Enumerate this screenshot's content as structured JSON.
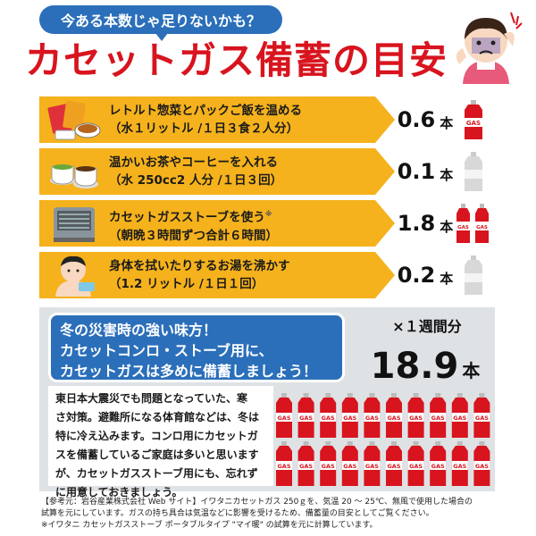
{
  "header": {
    "subtitle": "今ある本数じゃ足りないかも？",
    "title": "カセットガス備蓄の目安"
  },
  "rows": [
    {
      "line1": "レトルト惣菜とパックご飯を温める",
      "line2": "（水１リットル /１日３食２人分）",
      "value": "0.6",
      "unit": "本",
      "icon": "retort-food-icon"
    },
    {
      "line1": "温かいお茶やコーヒーを入れる",
      "line2": "（水 250cc2 人分 /１日３回）",
      "value": "0.1",
      "unit": "本",
      "icon": "tea-coffee-icon"
    },
    {
      "line1": "カセットガスストーブを使う",
      "note_mark": "※",
      "line2": "（朝晩３時間ずつ合計６時間）",
      "value": "1.8",
      "unit": "本",
      "icon": "gas-stove-icon"
    },
    {
      "line1": "身体を拭いたりするお湯を沸かす",
      "line2": "（1.2 リットル /１日１回）",
      "value": "0.2",
      "unit": "本",
      "icon": "person-towel-icon"
    }
  ],
  "can_label": "GAS",
  "notice": {
    "line1": "冬の災害時の強い味方！",
    "line2": "カセットコンロ・ストーブ用に、",
    "line3": "カセットガスは多めに備蓄しましょう！"
  },
  "total": {
    "period": "×１週間分",
    "value": "18.9",
    "unit": "本"
  },
  "body_text": [
    "東日本大震災でも問題となっていた、寒",
    "さ対策。避難所になる体育館などは、冬は",
    "特に冷え込みます。コンロ用にカセットガ",
    "スを備蓄しているご家庭は多いと思います",
    "が、カセットガスストーブ用にも、忘れず",
    "に用意しておきましょう。"
  ],
  "footnote": [
    "【参考元：岩谷産業株式会社 Web サイト】イワタニカセットガス 250ｇを、気温 20 〜 25℃、無風で使用した場合の",
    "試算を元にしています。ガスの持ち具合は気温などに影響を受けるため、備蓄量の目安としてご覧ください。",
    "※イワタニ カセットガスストーブ ポータブルタイプ \"マイ暖\" の試算を元に計算しています。"
  ],
  "colors": {
    "accent_blue": "#2b6fba",
    "title_red": "#d8141e",
    "band_orange": "#f5b21c",
    "can_red": "#d8141e",
    "panel_gray": "#dfe2e5"
  }
}
